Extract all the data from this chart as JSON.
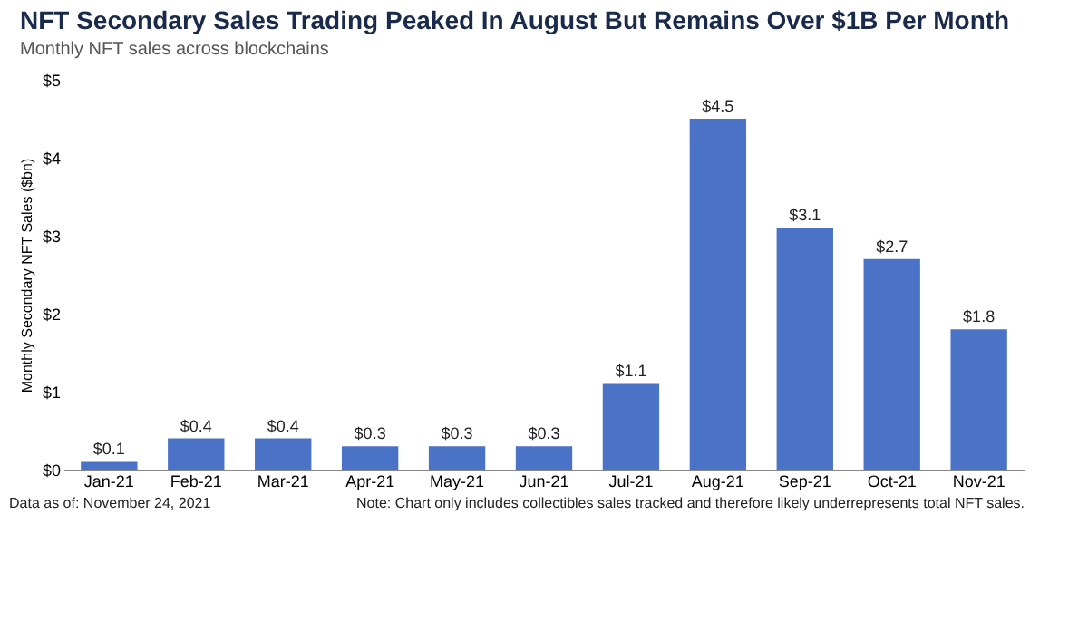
{
  "chart_data": {
    "type": "bar",
    "title": "NFT Secondary Sales Trading Peaked In August But Remains Over $1B Per Month",
    "subtitle": "Monthly NFT sales across blockchains",
    "ylabel": "Monthly Secondary NFT Sales ($bn)",
    "categories": [
      "Jan-21",
      "Feb-21",
      "Mar-21",
      "Apr-21",
      "May-21",
      "Jun-21",
      "Jul-21",
      "Aug-21",
      "Sep-21",
      "Oct-21",
      "Nov-21"
    ],
    "values": [
      0.1,
      0.4,
      0.4,
      0.3,
      0.3,
      0.3,
      1.1,
      4.5,
      3.1,
      2.7,
      1.8
    ],
    "value_labels": [
      "$0.1",
      "$0.4",
      "$0.4",
      "$0.3",
      "$0.3",
      "$0.3",
      "$1.1",
      "$4.5",
      "$3.1",
      "$2.7",
      "$1.8"
    ],
    "color": "#4a72c6",
    "ylim": [
      0,
      5
    ],
    "yticks": [
      {
        "value": 0,
        "label": "$0"
      },
      {
        "value": 1,
        "label": "$1"
      },
      {
        "value": 2,
        "label": "$2"
      },
      {
        "value": 3,
        "label": "$3"
      },
      {
        "value": 4,
        "label": "$4"
      },
      {
        "value": 5,
        "label": "$5"
      }
    ],
    "grid": false,
    "annotations": [
      "Data as of: November 24, 2021",
      "Note: Chart only includes collectibles sales tracked and therefore likely underrepresents total NFT sales."
    ]
  }
}
